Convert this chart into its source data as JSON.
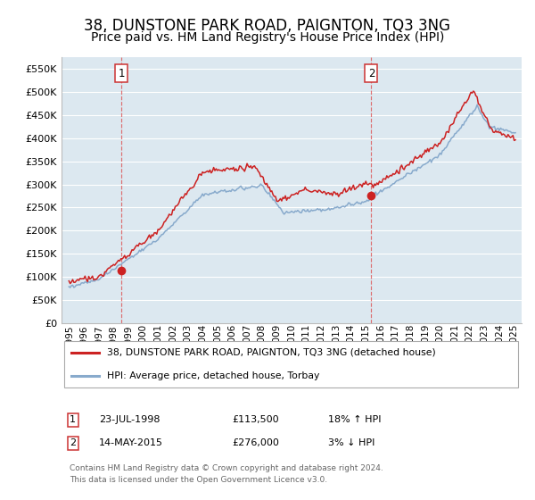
{
  "title": "38, DUNSTONE PARK ROAD, PAIGNTON, TQ3 3NG",
  "subtitle": "Price paid vs. HM Land Registry's House Price Index (HPI)",
  "title_fontsize": 12,
  "subtitle_fontsize": 10,
  "background_color": "#ffffff",
  "plot_bg_color": "#dce8f0",
  "grid_color": "#ffffff",
  "sale1_x": 1998.55,
  "sale1_y": 113500,
  "sale1_label": "1",
  "sale2_x": 2015.37,
  "sale2_y": 276000,
  "sale2_label": "2",
  "legend_line1": "38, DUNSTONE PARK ROAD, PAIGNTON, TQ3 3NG (detached house)",
  "legend_line2": "HPI: Average price, detached house, Torbay",
  "table_row1_num": "1",
  "table_row1_date": "23-JUL-1998",
  "table_row1_price": "£113,500",
  "table_row1_hpi": "18% ↑ HPI",
  "table_row2_num": "2",
  "table_row2_date": "14-MAY-2015",
  "table_row2_price": "£276,000",
  "table_row2_hpi": "3% ↓ HPI",
  "footer": "Contains HM Land Registry data © Crown copyright and database right 2024.\nThis data is licensed under the Open Government Licence v3.0.",
  "red_color": "#cc2222",
  "blue_color": "#88aacc",
  "ylim_min": 0,
  "ylim_max": 575000,
  "yticks": [
    0,
    50000,
    100000,
    150000,
    200000,
    250000,
    300000,
    350000,
    400000,
    450000,
    500000,
    550000
  ],
  "ytick_labels": [
    "£0",
    "£50K",
    "£100K",
    "£150K",
    "£200K",
    "£250K",
    "£300K",
    "£350K",
    "£400K",
    "£450K",
    "£500K",
    "£550K"
  ],
  "xlim_min": 1994.5,
  "xlim_max": 2025.5,
  "xtick_years": [
    1995,
    1996,
    1997,
    1998,
    1999,
    2000,
    2001,
    2002,
    2003,
    2004,
    2005,
    2006,
    2007,
    2008,
    2009,
    2010,
    2011,
    2012,
    2013,
    2014,
    2015,
    2016,
    2017,
    2018,
    2019,
    2020,
    2021,
    2022,
    2023,
    2024,
    2025
  ]
}
